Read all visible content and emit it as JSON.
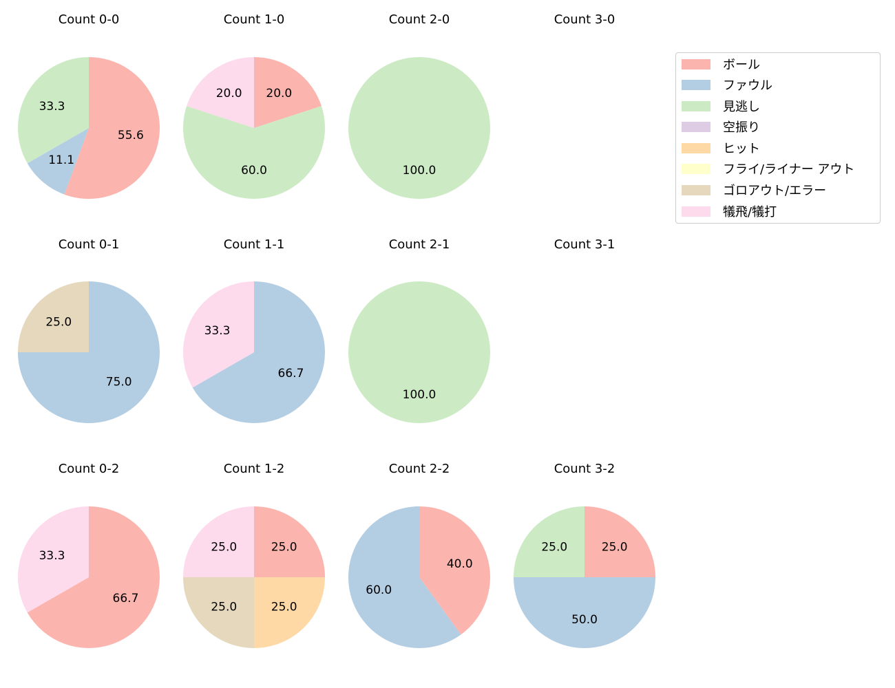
{
  "chart_data": {
    "type": "pie",
    "layout": {
      "rows": 3,
      "cols": 4,
      "start_angle": "12 o'clock",
      "direction": "clockwise",
      "label_format": "%.1f"
    },
    "legend": {
      "position": "upper right",
      "entries": [
        {
          "label": "ボール",
          "color": "#fbb4ae"
        },
        {
          "label": "ファウル",
          "color": "#b3cde3"
        },
        {
          "label": "見逃し",
          "color": "#ccebc5"
        },
        {
          "label": "空振り",
          "color": "#decbe4"
        },
        {
          "label": "ヒット",
          "color": "#fed9a6"
        },
        {
          "label": "フライ/ライナー アウト",
          "color": "#ffffcc"
        },
        {
          "label": "ゴロアウト/エラー",
          "color": "#e5d8bd"
        },
        {
          "label": "犠飛/犠打",
          "color": "#fddaec"
        }
      ]
    },
    "charts": [
      {
        "title": "Count 0-0",
        "row": 0,
        "col": 0,
        "slices": [
          {
            "category": "ボール",
            "value": 55.6
          },
          {
            "category": "ファウル",
            "value": 11.1
          },
          {
            "category": "見逃し",
            "value": 33.3
          }
        ]
      },
      {
        "title": "Count 1-0",
        "row": 0,
        "col": 1,
        "slices": [
          {
            "category": "ボール",
            "value": 20.0
          },
          {
            "category": "見逃し",
            "value": 60.0
          },
          {
            "category": "犠飛/犠打",
            "value": 20.0
          }
        ]
      },
      {
        "title": "Count 2-0",
        "row": 0,
        "col": 2,
        "slices": [
          {
            "category": "見逃し",
            "value": 100.0
          }
        ]
      },
      {
        "title": "Count 3-0",
        "row": 0,
        "col": 3,
        "slices": []
      },
      {
        "title": "Count 0-1",
        "row": 1,
        "col": 0,
        "slices": [
          {
            "category": "ファウル",
            "value": 75.0
          },
          {
            "category": "ゴロアウト/エラー",
            "value": 25.0
          }
        ]
      },
      {
        "title": "Count 1-1",
        "row": 1,
        "col": 1,
        "slices": [
          {
            "category": "ファウル",
            "value": 66.7
          },
          {
            "category": "犠飛/犠打",
            "value": 33.3
          }
        ]
      },
      {
        "title": "Count 2-1",
        "row": 1,
        "col": 2,
        "slices": [
          {
            "category": "見逃し",
            "value": 100.0
          }
        ]
      },
      {
        "title": "Count 3-1",
        "row": 1,
        "col": 3,
        "slices": []
      },
      {
        "title": "Count 0-2",
        "row": 2,
        "col": 0,
        "slices": [
          {
            "category": "ボール",
            "value": 66.7
          },
          {
            "category": "犠飛/犠打",
            "value": 33.3
          }
        ]
      },
      {
        "title": "Count 1-2",
        "row": 2,
        "col": 1,
        "slices": [
          {
            "category": "ボール",
            "value": 25.0
          },
          {
            "category": "ヒット",
            "value": 25.0
          },
          {
            "category": "ゴロアウト/エラー",
            "value": 25.0
          },
          {
            "category": "犠飛/犠打",
            "value": 25.0
          }
        ]
      },
      {
        "title": "Count 2-2",
        "row": 2,
        "col": 2,
        "slices": [
          {
            "category": "ボール",
            "value": 40.0
          },
          {
            "category": "ファウル",
            "value": 60.0
          }
        ]
      },
      {
        "title": "Count 3-2",
        "row": 2,
        "col": 3,
        "slices": [
          {
            "category": "ボール",
            "value": 25.0
          },
          {
            "category": "ファウル",
            "value": 50.0
          },
          {
            "category": "見逃し",
            "value": 25.0
          }
        ]
      }
    ]
  }
}
